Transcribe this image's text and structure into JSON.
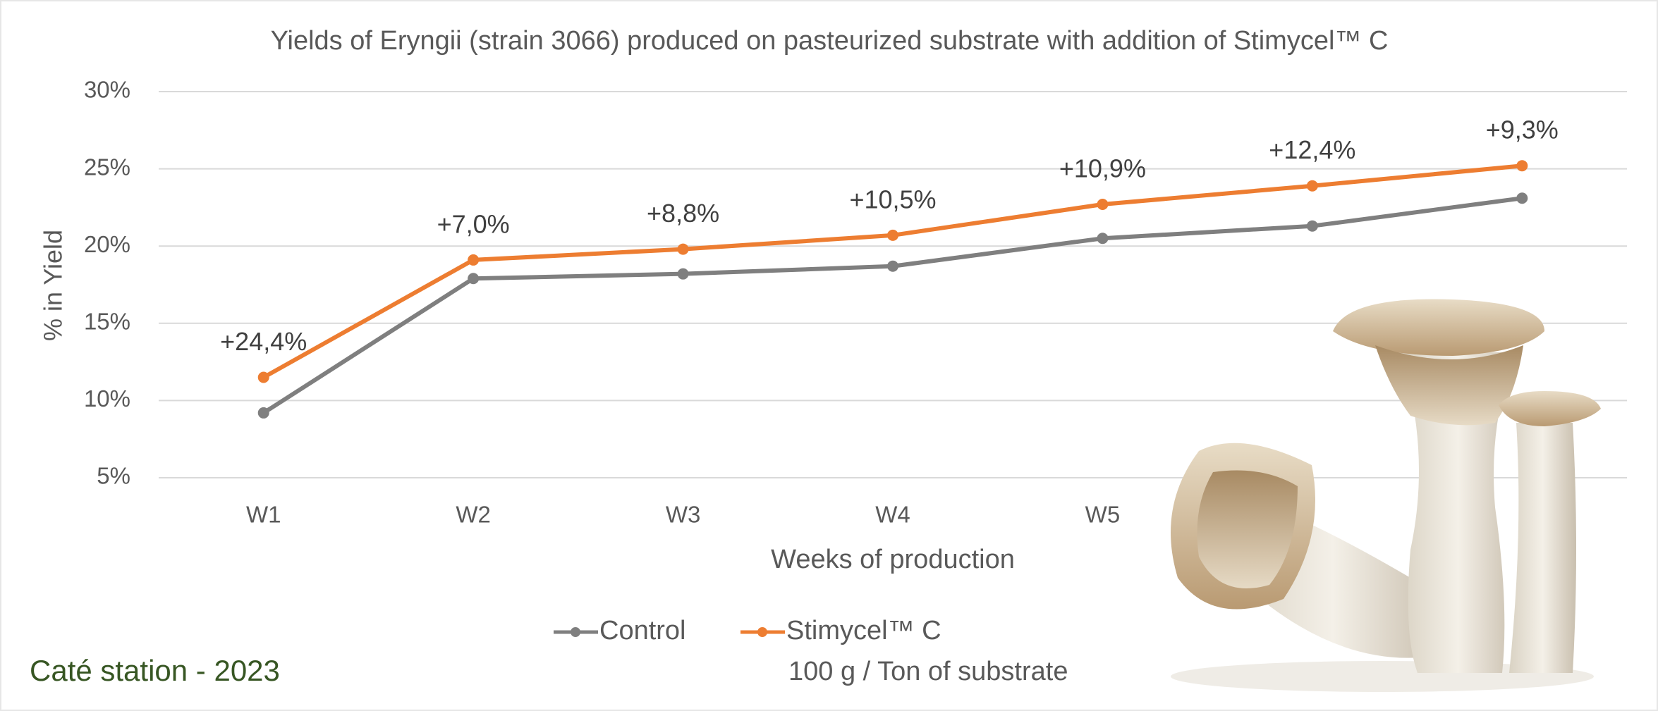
{
  "chart_data": {
    "type": "line",
    "title": "Yields of Eryngii (strain 3066) produced on pasteurized substrate with addition of Stimycel™ C",
    "y_label": "% in Yield",
    "x_label": "Weeks of production",
    "categories": [
      "W1",
      "W2",
      "W3",
      "W4",
      "W5",
      null,
      null
    ],
    "series": [
      {
        "name": "Control",
        "color": "#7f7f7f",
        "values": [
          9.2,
          17.9,
          18.2,
          18.7,
          20.5,
          21.3,
          23.1
        ]
      },
      {
        "name": "Stimycel™ C",
        "color": "#ed7d31",
        "values": [
          11.5,
          19.1,
          19.8,
          20.7,
          22.7,
          23.9,
          25.2
        ],
        "annotations": [
          "+24,4%",
          "+7,0%",
          "+8,8%",
          "+10,5%",
          "+10,9%",
          "+12,4%",
          "+9,3%"
        ]
      }
    ],
    "ylim": [
      5,
      30
    ],
    "yticks": [
      {
        "value": 5,
        "label": "5%"
      },
      {
        "value": 10,
        "label": "10%"
      },
      {
        "value": 15,
        "label": "15%"
      },
      {
        "value": 20,
        "label": "20%"
      },
      {
        "value": 25,
        "label": "25%"
      },
      {
        "value": 30,
        "label": "30%"
      }
    ],
    "grid": true,
    "legend_position": "bottom",
    "legend_note": "100 g / Ton of substrate",
    "source": "Caté station - 2023"
  }
}
